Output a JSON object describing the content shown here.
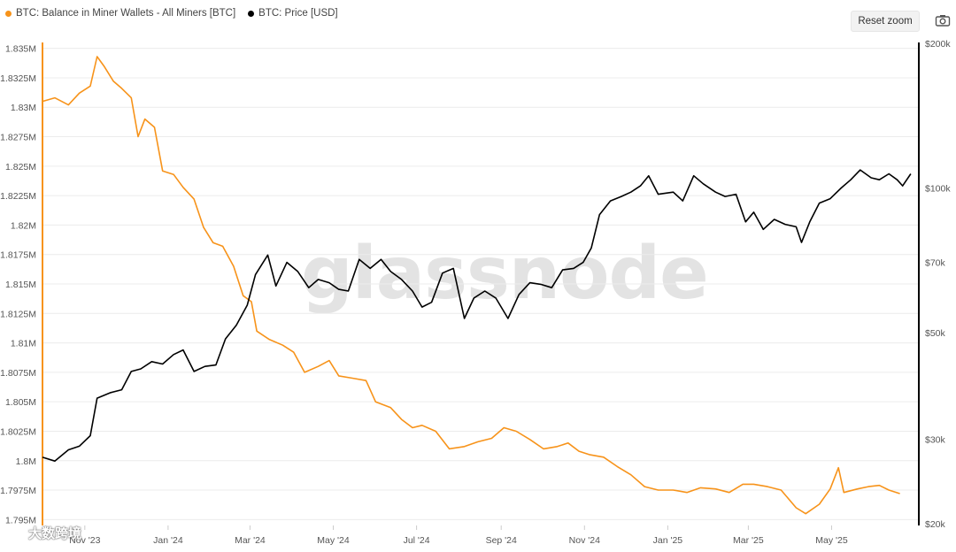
{
  "legend": {
    "series1": "BTC: Balance in Miner Wallets - All Miners [BTC]",
    "series2": "BTC: Price [USD]"
  },
  "toolbar": {
    "reset_zoom": "Reset zoom",
    "camera_icon": "camera-icon"
  },
  "watermark": "glassnode",
  "corner_logo": "大数跨境",
  "colors": {
    "balance": "#f7931a",
    "price": "#000000",
    "grid": "#ececec"
  },
  "chart_data": {
    "type": "line",
    "x_labels": [
      "Nov '23",
      "Jan '24",
      "Mar '24",
      "May '24",
      "Jul '24",
      "Sep '24",
      "Nov '24",
      "Jan '25",
      "Mar '25",
      "May '25"
    ],
    "left_axis": {
      "ticks": [
        "1.835M",
        "1.8325M",
        "1.83M",
        "1.8275M",
        "1.825M",
        "1.8225M",
        "1.82M",
        "1.8175M",
        "1.815M",
        "1.8125M",
        "1.81M",
        "1.8075M",
        "1.805M",
        "1.8025M",
        "1.8M",
        "1.7975M",
        "1.795M"
      ],
      "min": 1.7945,
      "max": 1.8355
    },
    "right_axis": {
      "scale": "log",
      "ticks": [
        "$200k",
        "$100k",
        "$70k",
        "$50k",
        "$30k",
        "$20k"
      ],
      "tick_values": [
        200000,
        100000,
        70000,
        50000,
        30000,
        20000
      ],
      "min": 20000,
      "max": 200000
    },
    "series": [
      {
        "name": "BTC: Balance in Miner Wallets - All Miners [BTC]",
        "axis": "left",
        "points": [
          [
            "2023-10-01",
            1.8305
          ],
          [
            "2023-10-10",
            1.8308
          ],
          [
            "2023-10-20",
            1.8302
          ],
          [
            "2023-10-28",
            1.8312
          ],
          [
            "2023-11-05",
            1.8318
          ],
          [
            "2023-11-10",
            1.8343
          ],
          [
            "2023-11-15",
            1.8335
          ],
          [
            "2023-11-22",
            1.8322
          ],
          [
            "2023-11-28",
            1.8316
          ],
          [
            "2023-12-05",
            1.8308
          ],
          [
            "2023-12-10",
            1.8275
          ],
          [
            "2023-12-15",
            1.829
          ],
          [
            "2023-12-22",
            1.8283
          ],
          [
            "2023-12-28",
            1.8246
          ],
          [
            "2024-01-05",
            1.8243
          ],
          [
            "2024-01-12",
            1.8232
          ],
          [
            "2024-01-20",
            1.8222
          ],
          [
            "2024-01-27",
            1.8198
          ],
          [
            "2024-02-03",
            1.8185
          ],
          [
            "2024-02-10",
            1.8182
          ],
          [
            "2024-02-18",
            1.8165
          ],
          [
            "2024-02-25",
            1.814
          ],
          [
            "2024-03-02",
            1.8135
          ],
          [
            "2024-03-06",
            1.811
          ],
          [
            "2024-03-15",
            1.8103
          ],
          [
            "2024-03-25",
            1.8098
          ],
          [
            "2024-04-02",
            1.8092
          ],
          [
            "2024-04-10",
            1.8075
          ],
          [
            "2024-04-20",
            1.808
          ],
          [
            "2024-04-28",
            1.8085
          ],
          [
            "2024-05-05",
            1.8072
          ],
          [
            "2024-05-15",
            1.807
          ],
          [
            "2024-05-25",
            1.8068
          ],
          [
            "2024-06-01",
            1.805
          ],
          [
            "2024-06-12",
            1.8045
          ],
          [
            "2024-06-20",
            1.8035
          ],
          [
            "2024-06-28",
            1.8028
          ],
          [
            "2024-07-05",
            1.803
          ],
          [
            "2024-07-15",
            1.8025
          ],
          [
            "2024-07-25",
            1.801
          ],
          [
            "2024-08-05",
            1.8012
          ],
          [
            "2024-08-15",
            1.8016
          ],
          [
            "2024-08-25",
            1.8019
          ],
          [
            "2024-09-03",
            1.8028
          ],
          [
            "2024-09-12",
            1.8025
          ],
          [
            "2024-09-22",
            1.8018
          ],
          [
            "2024-10-02",
            1.801
          ],
          [
            "2024-10-12",
            1.8012
          ],
          [
            "2024-10-20",
            1.8015
          ],
          [
            "2024-10-28",
            1.8008
          ],
          [
            "2024-11-05",
            1.8005
          ],
          [
            "2024-11-15",
            1.8003
          ],
          [
            "2024-11-25",
            1.7995
          ],
          [
            "2024-12-05",
            1.7988
          ],
          [
            "2024-12-15",
            1.7978
          ],
          [
            "2024-12-25",
            1.7975
          ],
          [
            "2025-01-05",
            1.7975
          ],
          [
            "2025-01-15",
            1.7973
          ],
          [
            "2025-01-25",
            1.7977
          ],
          [
            "2025-02-05",
            1.7976
          ],
          [
            "2025-02-15",
            1.7973
          ],
          [
            "2025-02-25",
            1.798
          ],
          [
            "2025-03-05",
            1.798
          ],
          [
            "2025-03-15",
            1.7978
          ],
          [
            "2025-03-25",
            1.7975
          ],
          [
            "2025-04-05",
            1.796
          ],
          [
            "2025-04-12",
            1.7955
          ],
          [
            "2025-04-22",
            1.7963
          ],
          [
            "2025-04-30",
            1.7976
          ],
          [
            "2025-05-06",
            1.7994
          ],
          [
            "2025-05-10",
            1.7973
          ],
          [
            "2025-05-20",
            1.7976
          ],
          [
            "2025-05-28",
            1.7978
          ],
          [
            "2025-06-05",
            1.7979
          ],
          [
            "2025-06-12",
            1.7975
          ],
          [
            "2025-06-20",
            1.7972
          ]
        ]
      },
      {
        "name": "BTC: Price [USD]",
        "axis": "right",
        "points": [
          [
            "2023-10-01",
            27500
          ],
          [
            "2023-10-10",
            27000
          ],
          [
            "2023-10-20",
            28500
          ],
          [
            "2023-10-28",
            29000
          ],
          [
            "2023-11-05",
            30500
          ],
          [
            "2023-11-10",
            36500
          ],
          [
            "2023-11-20",
            37500
          ],
          [
            "2023-11-28",
            38000
          ],
          [
            "2023-12-05",
            41500
          ],
          [
            "2023-12-12",
            42000
          ],
          [
            "2023-12-20",
            43500
          ],
          [
            "2023-12-28",
            43000
          ],
          [
            "2024-01-05",
            45000
          ],
          [
            "2024-01-12",
            46000
          ],
          [
            "2024-01-20",
            41500
          ],
          [
            "2024-01-28",
            42500
          ],
          [
            "2024-02-05",
            42800
          ],
          [
            "2024-02-12",
            48500
          ],
          [
            "2024-02-20",
            51800
          ],
          [
            "2024-02-28",
            57000
          ],
          [
            "2024-03-05",
            66000
          ],
          [
            "2024-03-14",
            72500
          ],
          [
            "2024-03-20",
            62500
          ],
          [
            "2024-03-28",
            70000
          ],
          [
            "2024-04-05",
            67000
          ],
          [
            "2024-04-13",
            62000
          ],
          [
            "2024-04-20",
            64500
          ],
          [
            "2024-04-28",
            63500
          ],
          [
            "2024-05-05",
            61500
          ],
          [
            "2024-05-12",
            61000
          ],
          [
            "2024-05-20",
            71000
          ],
          [
            "2024-05-28",
            68000
          ],
          [
            "2024-06-05",
            71000
          ],
          [
            "2024-06-12",
            67000
          ],
          [
            "2024-06-20",
            64500
          ],
          [
            "2024-06-28",
            61000
          ],
          [
            "2024-07-05",
            56500
          ],
          [
            "2024-07-12",
            57800
          ],
          [
            "2024-07-20",
            66500
          ],
          [
            "2024-07-28",
            68000
          ],
          [
            "2024-08-05",
            53500
          ],
          [
            "2024-08-12",
            59000
          ],
          [
            "2024-08-20",
            61000
          ],
          [
            "2024-08-28",
            59000
          ],
          [
            "2024-09-06",
            53500
          ],
          [
            "2024-09-14",
            60000
          ],
          [
            "2024-09-22",
            63500
          ],
          [
            "2024-09-30",
            63000
          ],
          [
            "2024-10-08",
            62000
          ],
          [
            "2024-10-16",
            67500
          ],
          [
            "2024-10-24",
            68000
          ],
          [
            "2024-10-31",
            70000
          ],
          [
            "2024-11-06",
            75000
          ],
          [
            "2024-11-12",
            88000
          ],
          [
            "2024-11-20",
            94000
          ],
          [
            "2024-11-28",
            96000
          ],
          [
            "2024-12-05",
            98000
          ],
          [
            "2024-12-12",
            101000
          ],
          [
            "2024-12-18",
            106000
          ],
          [
            "2024-12-25",
            97000
          ],
          [
            "2025-01-05",
            98000
          ],
          [
            "2025-01-12",
            94000
          ],
          [
            "2025-01-20",
            106000
          ],
          [
            "2025-01-27",
            102000
          ],
          [
            "2025-02-05",
            98000
          ],
          [
            "2025-02-12",
            96000
          ],
          [
            "2025-02-20",
            97000
          ],
          [
            "2025-02-27",
            85000
          ],
          [
            "2025-03-05",
            89000
          ],
          [
            "2025-03-12",
            82000
          ],
          [
            "2025-03-20",
            86000
          ],
          [
            "2025-03-28",
            84000
          ],
          [
            "2025-04-05",
            83000
          ],
          [
            "2025-04-09",
            77000
          ],
          [
            "2025-04-15",
            85000
          ],
          [
            "2025-04-22",
            93000
          ],
          [
            "2025-04-30",
            95000
          ],
          [
            "2025-05-08",
            100000
          ],
          [
            "2025-05-15",
            104000
          ],
          [
            "2025-05-22",
            109000
          ],
          [
            "2025-05-30",
            105000
          ],
          [
            "2025-06-05",
            104000
          ],
          [
            "2025-06-12",
            107000
          ],
          [
            "2025-06-18",
            104000
          ],
          [
            "2025-06-22",
            101000
          ],
          [
            "2025-06-28",
            107000
          ]
        ]
      }
    ]
  }
}
